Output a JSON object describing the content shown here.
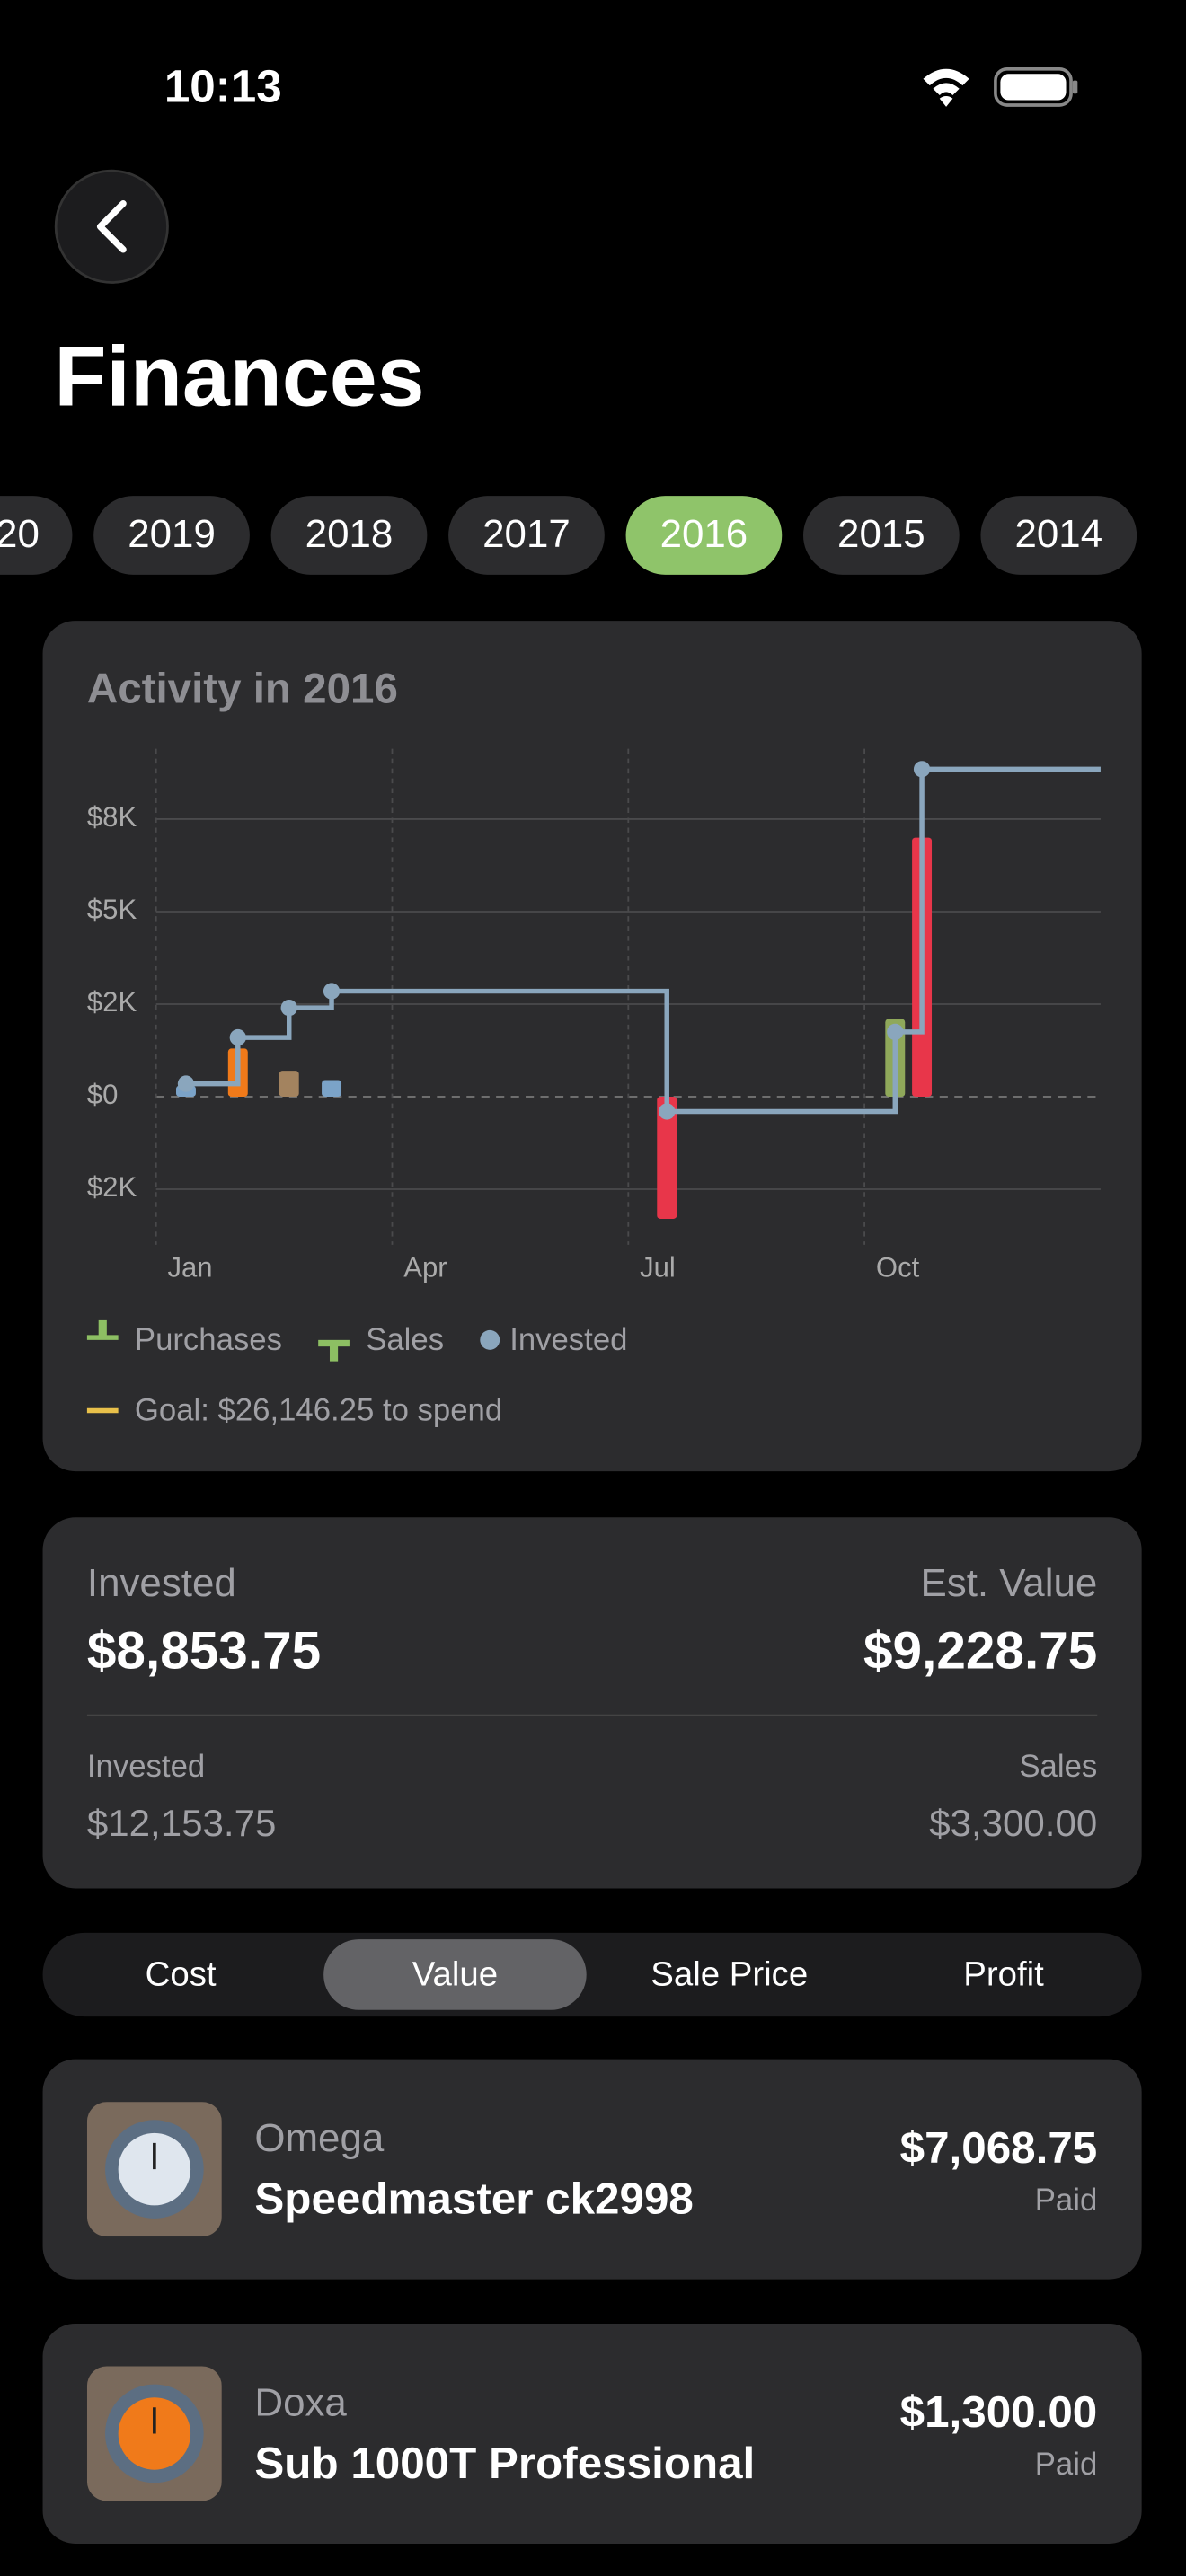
{
  "status_bar": {
    "time": "10:13"
  },
  "header": {
    "title": "Finances"
  },
  "year_tabs": {
    "items": [
      "20",
      "2019",
      "2018",
      "2017",
      "2016",
      "2015",
      "2014"
    ],
    "selected": 4,
    "selected_color": "#8fc46a"
  },
  "chart_data": {
    "type": "combo",
    "title": "Activity in 2016",
    "xlim": [
      0,
      12
    ],
    "xticks": [
      {
        "value": 0,
        "label": "Jan"
      },
      {
        "value": 3,
        "label": "Apr"
      },
      {
        "value": 6,
        "label": "Jul"
      },
      {
        "value": 9,
        "label": "Oct"
      }
    ],
    "ylim": [
      -4000,
      9400
    ],
    "yticks": [
      {
        "value": 7500,
        "label": "$8K"
      },
      {
        "value": 5000,
        "label": "$5K"
      },
      {
        "value": 2500,
        "label": "$2K"
      },
      {
        "value": 0,
        "label": "$0"
      },
      {
        "value": -2500,
        "label": "$2K"
      }
    ],
    "grid": true,
    "series": [
      {
        "name": "Purchases",
        "type": "bar",
        "color": "#8dbf63",
        "x": [
          0.38,
          1.04,
          1.69,
          2.23,
          9.39,
          9.73
        ],
        "values": [
          300,
          1300,
          700,
          450,
          2100,
          7000
        ],
        "colors": [
          "#7ba3c8",
          "#f07a1a",
          "#a3835f",
          "#7ba3c8",
          "#8fa85a",
          "#e8364a"
        ]
      },
      {
        "name": "Sales",
        "type": "bar",
        "color": "#8dbf63",
        "x": [
          6.49
        ],
        "values": [
          -3300
        ],
        "colors": [
          "#e8364a"
        ]
      },
      {
        "name": "Invested",
        "type": "step",
        "color": "#8aa6bd",
        "x": [
          0.38,
          1.04,
          1.69,
          2.23,
          6.49,
          9.39,
          9.73
        ],
        "values": [
          350,
          1600,
          2400,
          2850,
          -400,
          1750,
          8850
        ]
      }
    ],
    "goal_label": "Goal: $26,146.25 to spend",
    "goal_color": "#e8c04a"
  },
  "summary": {
    "invested_label": "Invested",
    "invested": "$8,853.75",
    "est_value_label": "Est. Value",
    "est_value": "$9,228.75",
    "total_invested_label": "Invested",
    "total_invested": "$12,153.75",
    "sales_label": "Sales",
    "sales": "$3,300.00"
  },
  "segments": {
    "items": [
      "Cost",
      "Value",
      "Sale Price",
      "Profit"
    ],
    "selected": 1
  },
  "items": [
    {
      "brand": "Omega",
      "model": "Speedmaster ck2998",
      "price": "$7,068.75",
      "status": "Paid"
    },
    {
      "brand": "Doxa",
      "model": "Sub 1000T Professional",
      "price": "$1,300.00",
      "status": "Paid"
    }
  ]
}
